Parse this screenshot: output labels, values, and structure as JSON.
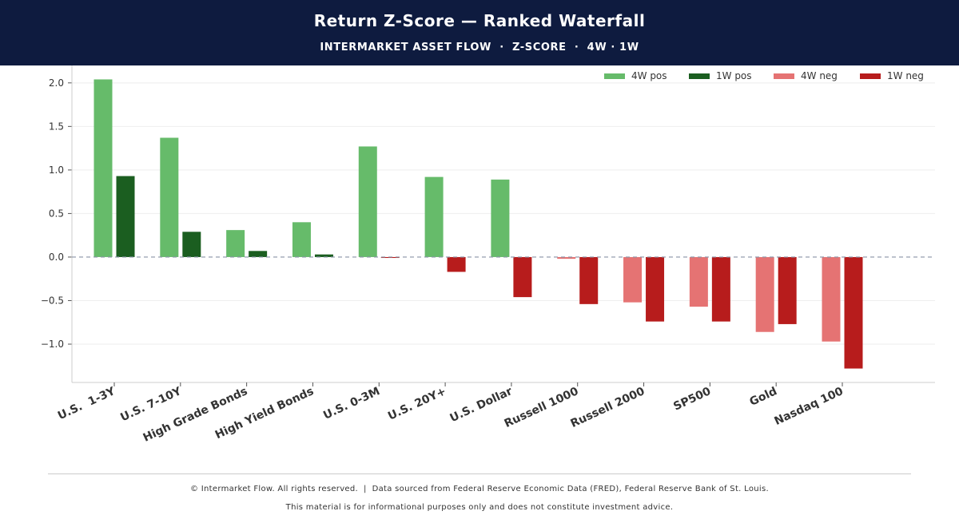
{
  "header": {
    "title": "Return Z-Score — Ranked Waterfall",
    "subtitle": "INTERMARKET ASSET FLOW  ·  Z-SCORE  ·  4W · 1W"
  },
  "footer": {
    "line1": "© Intermarket Flow. All rights reserved.  |  Data sourced from Federal Reserve Economic Data (FRED), Federal Reserve Bank of St. Louis.",
    "line2": "This material is for informational purposes only and does not constitute investment advice."
  },
  "colors": {
    "header_bg": "#0e1b3f",
    "pos_4w": "#66bb6a",
    "pos_1w": "#1b5e20",
    "neg_4w": "#e57373",
    "neg_1w": "#b71c1c"
  },
  "chart_data": {
    "type": "bar",
    "categories": [
      "U.S.  1-3Y",
      "U.S. 7-10Y",
      "High Grade Bonds",
      "High Yield Bonds",
      "U.S. 0-3M",
      "U.S. 20Y+",
      "U.S. Dollar",
      "Russell 1000",
      "Russell 2000",
      "SP500",
      "Gold",
      "Nasdaq 100"
    ],
    "series": [
      {
        "name": "4W",
        "values": [
          2.04,
          1.37,
          0.31,
          0.4,
          1.27,
          0.92,
          0.89,
          -0.02,
          -0.52,
          -0.57,
          -0.86,
          -0.97
        ]
      },
      {
        "name": "1W",
        "values": [
          0.93,
          0.29,
          0.07,
          0.03,
          -0.01,
          -0.17,
          -0.46,
          -0.54,
          -0.74,
          -0.74,
          -0.77,
          -1.28
        ]
      }
    ],
    "legend": [
      "4W pos",
      "1W pos",
      "4W neg",
      "1W neg"
    ],
    "legend_position": "top-right",
    "yticks": [
      -1.0,
      -0.5,
      0.0,
      0.5,
      1.0,
      1.5,
      2.0
    ],
    "ytick_labels": [
      "−1.0",
      "−0.5",
      "0.0",
      "0.5",
      "1.0",
      "1.5",
      "2.0"
    ],
    "ylim": [
      -1.44,
      2.2
    ],
    "zero_line": "dashed",
    "grid": "horizontal"
  }
}
